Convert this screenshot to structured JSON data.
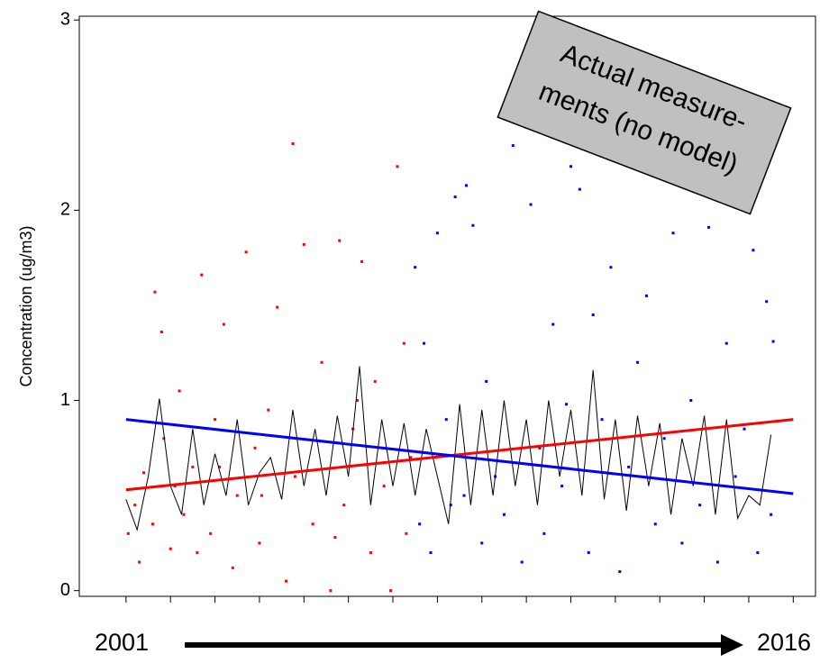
{
  "chart_data": {
    "type": "scatter",
    "ylabel": "Concentration  (ug/m3)",
    "x_start_label": "2001",
    "x_end_label": "2016",
    "annotation": [
      "Actual measure-",
      "ments (no model)"
    ],
    "xlim": [
      1999.95,
      2016.5
    ],
    "ylim": [
      -0.03,
      3.02
    ],
    "xticks": [
      2001,
      2002,
      2003,
      2004,
      2005,
      2006,
      2007,
      2008,
      2009,
      2010,
      2011,
      2012,
      2013,
      2014,
      2015,
      2016
    ],
    "yticks": [
      0,
      1,
      2,
      3
    ],
    "series": [
      {
        "type": "scatter",
        "color": "#ff0000",
        "x": [
          2001.05,
          2001.2,
          2001.3,
          2001.4,
          2001.6,
          2001.65,
          2001.85,
          2001.8,
          2002.0,
          2002.1,
          2002.2,
          2002.3,
          2002.5,
          2002.7,
          2002.9,
          2003.0,
          2003.2,
          2003.4,
          2003.5,
          2003.7,
          2003.9,
          2004.0,
          2004.2,
          2004.4,
          2004.6,
          2004.8,
          2004.75,
          2005.0,
          2005.2,
          2005.4,
          2005.6,
          2005.8,
          2005.9,
          2006.1,
          2006.3,
          2006.5,
          2006.6,
          2006.8,
          2006.95,
          2007.1,
          2007.3,
          2007.25,
          2007.4,
          2004.05,
          2003.1,
          2002.6,
          2005.7,
          2006.2
        ],
        "y": [
          0.3,
          0.45,
          0.15,
          0.62,
          0.35,
          1.57,
          0.8,
          1.36,
          0.22,
          0.55,
          1.05,
          0.4,
          0.65,
          1.66,
          0.3,
          0.9,
          1.4,
          0.12,
          0.5,
          1.78,
          0.75,
          0.25,
          0.95,
          1.49,
          0.05,
          0.6,
          2.35,
          1.82,
          0.35,
          1.2,
          0.0,
          1.84,
          0.45,
          0.85,
          1.73,
          0.2,
          1.1,
          0.55,
          0.0,
          2.23,
          0.3,
          1.3,
          0.7,
          0.5,
          0.65,
          0.2,
          0.28,
          1.0
        ]
      },
      {
        "type": "scatter",
        "color": "#0000ff",
        "x": [
          2007.5,
          2007.6,
          2007.7,
          2007.85,
          2008.0,
          2008.2,
          2008.4,
          2008.6,
          2008.65,
          2008.8,
          2009.0,
          2009.1,
          2009.3,
          2009.5,
          2009.7,
          2009.9,
          2010.1,
          2010.3,
          2010.4,
          2010.6,
          2010.8,
          2011.0,
          2011.2,
          2011.4,
          2011.5,
          2011.7,
          2011.9,
          2012.1,
          2012.3,
          2012.5,
          2012.7,
          2012.9,
          2013.1,
          2013.3,
          2013.5,
          2013.7,
          2013.9,
          2014.1,
          2014.3,
          2014.5,
          2014.7,
          2014.9,
          2015.1,
          2015.2,
          2015.4,
          2015.5,
          2015.55,
          2008.3,
          2010.9
        ],
        "y": [
          1.7,
          0.35,
          1.3,
          0.2,
          1.88,
          0.9,
          2.07,
          0.5,
          2.13,
          1.92,
          0.25,
          1.1,
          0.6,
          0.4,
          2.34,
          0.15,
          2.03,
          0.75,
          0.3,
          1.4,
          0.55,
          2.23,
          2.11,
          0.2,
          1.45,
          0.9,
          1.7,
          0.1,
          0.65,
          1.2,
          1.55,
          0.35,
          0.8,
          1.88,
          0.25,
          1.0,
          0.45,
          1.91,
          0.15,
          1.3,
          0.6,
          0.85,
          1.79,
          0.2,
          1.52,
          0.4,
          1.31,
          0.45,
          0.98
        ]
      },
      {
        "type": "line",
        "color": "#000000",
        "width": 1,
        "x": [
          2001.0,
          2001.25,
          2001.5,
          2001.75,
          2002.0,
          2002.25,
          2002.5,
          2002.75,
          2003.0,
          2003.25,
          2003.5,
          2003.75,
          2004.0,
          2004.25,
          2004.5,
          2004.75,
          2005.0,
          2005.25,
          2005.5,
          2005.75,
          2006.0,
          2006.25,
          2006.5,
          2006.75,
          2007.0,
          2007.25,
          2007.5,
          2007.75,
          2008.0,
          2008.25,
          2008.5,
          2008.75,
          2009.0,
          2009.25,
          2009.5,
          2009.75,
          2010.0,
          2010.25,
          2010.5,
          2010.75,
          2011.0,
          2011.25,
          2011.5,
          2011.75,
          2012.0,
          2012.25,
          2012.5,
          2012.75,
          2013.0,
          2013.25,
          2013.5,
          2013.75,
          2014.0,
          2014.25,
          2014.5,
          2014.75,
          2015.0,
          2015.25,
          2015.5
        ],
        "y": [
          0.48,
          0.32,
          0.6,
          1.01,
          0.55,
          0.4,
          0.85,
          0.45,
          0.72,
          0.5,
          0.9,
          0.45,
          0.62,
          0.7,
          0.48,
          0.95,
          0.55,
          0.85,
          0.5,
          0.92,
          0.6,
          1.18,
          0.45,
          0.9,
          0.55,
          0.88,
          0.5,
          0.85,
          0.6,
          0.35,
          0.98,
          0.45,
          0.95,
          0.5,
          1.0,
          0.55,
          0.9,
          0.45,
          1.0,
          0.6,
          0.95,
          0.5,
          1.16,
          0.48,
          0.9,
          0.42,
          0.92,
          0.55,
          0.88,
          0.4,
          0.8,
          0.55,
          0.92,
          0.4,
          0.9,
          0.38,
          0.5,
          0.45,
          0.82
        ]
      },
      {
        "type": "line",
        "color": "#ff0000",
        "width": 3,
        "x": [
          2001,
          2016
        ],
        "y": [
          0.53,
          0.9
        ]
      },
      {
        "type": "line",
        "color": "#0000ff",
        "width": 3,
        "x": [
          2001,
          2016
        ],
        "y": [
          0.9,
          0.51
        ]
      }
    ]
  }
}
